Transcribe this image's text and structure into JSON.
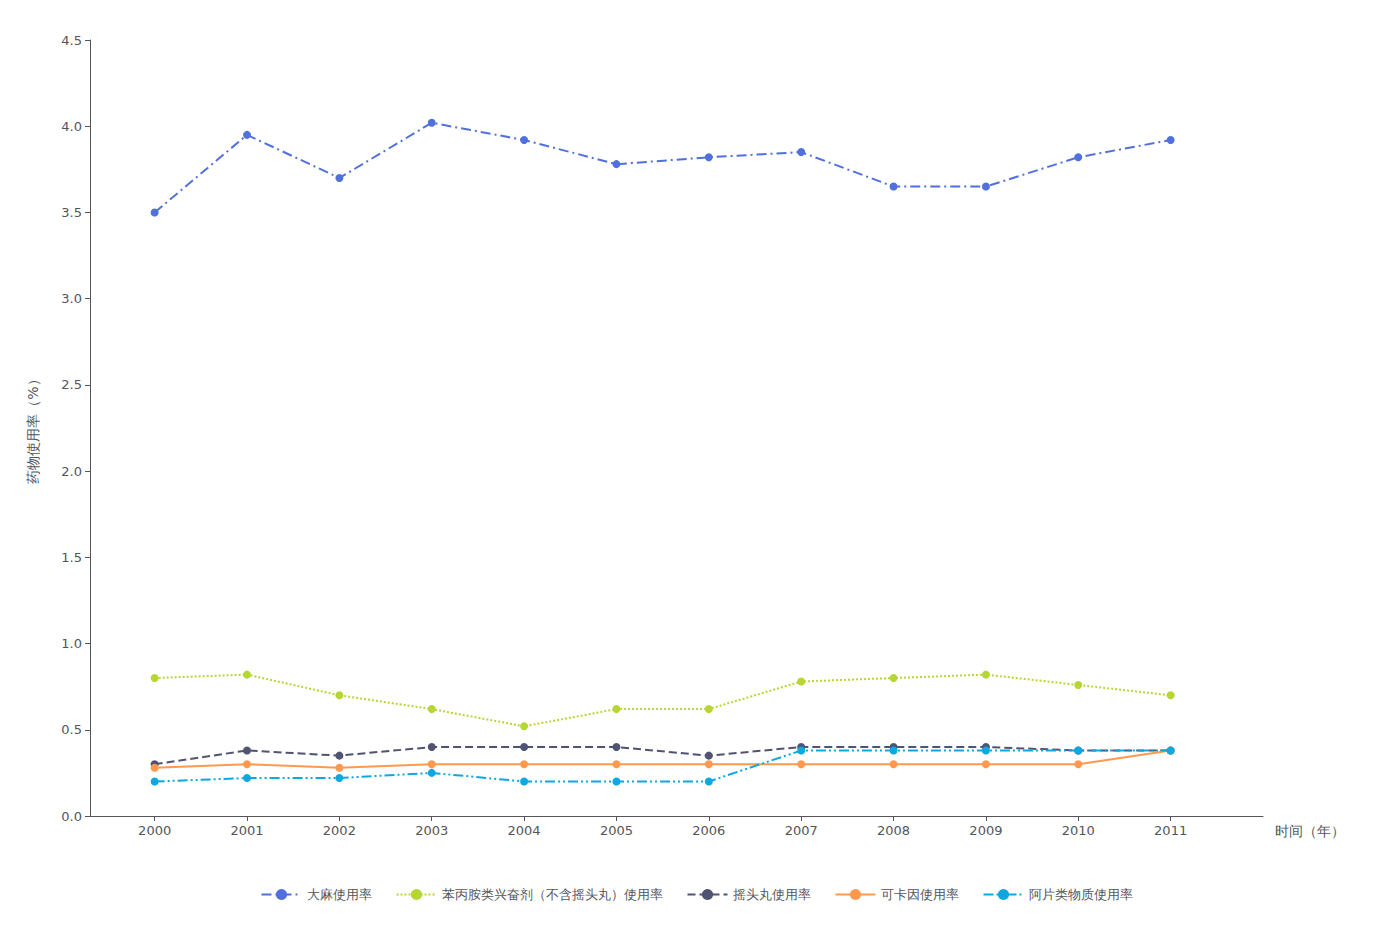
{
  "chart_data": {
    "type": "line",
    "xlabel": "时间（年）",
    "ylabel": "药物使用率（%）",
    "x": [
      2000,
      2001,
      2002,
      2003,
      2004,
      2005,
      2006,
      2007,
      2008,
      2009,
      2010,
      2011
    ],
    "xlim": [
      1999.3,
      2012.0
    ],
    "xticks": [
      2000,
      2001,
      2002,
      2003,
      2004,
      2005,
      2006,
      2007,
      2008,
      2009,
      2010,
      2011
    ],
    "ylim": [
      0.0,
      4.5
    ],
    "yticks": [
      {
        "value": 0.0,
        "label": "0.0"
      },
      0.5,
      {
        "value": 1.0,
        "label": "1.0"
      },
      1.5,
      {
        "value": 2.0,
        "label": "2.0"
      },
      2.5,
      {
        "value": 3.0,
        "label": "3.0"
      },
      3.5,
      {
        "value": 4.0,
        "label": "4.0"
      },
      4.5
    ],
    "grid": false,
    "legend": "bottom",
    "series": [
      {
        "name": "大麻使用率",
        "marker": "circle",
        "line_style": "dashdot",
        "values": [
          3.5,
          3.95,
          3.7,
          4.02,
          3.92,
          3.78,
          3.82,
          3.85,
          3.65,
          3.65,
          3.82,
          3.92
        ]
      },
      {
        "name": "苯丙胺类兴奋剂（不含摇头丸）使用率",
        "marker": "circle",
        "line_style": "dotted",
        "values": [
          0.8,
          0.82,
          0.7,
          0.62,
          0.52,
          0.62,
          0.62,
          0.78,
          0.8,
          0.82,
          0.76,
          0.7
        ]
      },
      {
        "name": "摇头丸使用率",
        "marker": "circle",
        "line_style": "dashed",
        "values": [
          0.3,
          0.38,
          0.35,
          0.4,
          0.4,
          0.4,
          0.35,
          0.4,
          0.4,
          0.4,
          0.38,
          0.38
        ]
      },
      {
        "name": "可卡因使用率",
        "marker": "circle",
        "line_style": "solid",
        "values": [
          0.28,
          0.3,
          0.28,
          0.3,
          0.3,
          0.3,
          0.3,
          0.3,
          0.3,
          0.3,
          0.3,
          0.38
        ]
      },
      {
        "name": "阿片类物质使用率",
        "marker": "circle",
        "line_style": "dashdotdot",
        "values": [
          0.2,
          0.22,
          0.22,
          0.25,
          0.2,
          0.2,
          0.2,
          0.38,
          0.38,
          0.38,
          0.38,
          0.38
        ]
      }
    ]
  }
}
